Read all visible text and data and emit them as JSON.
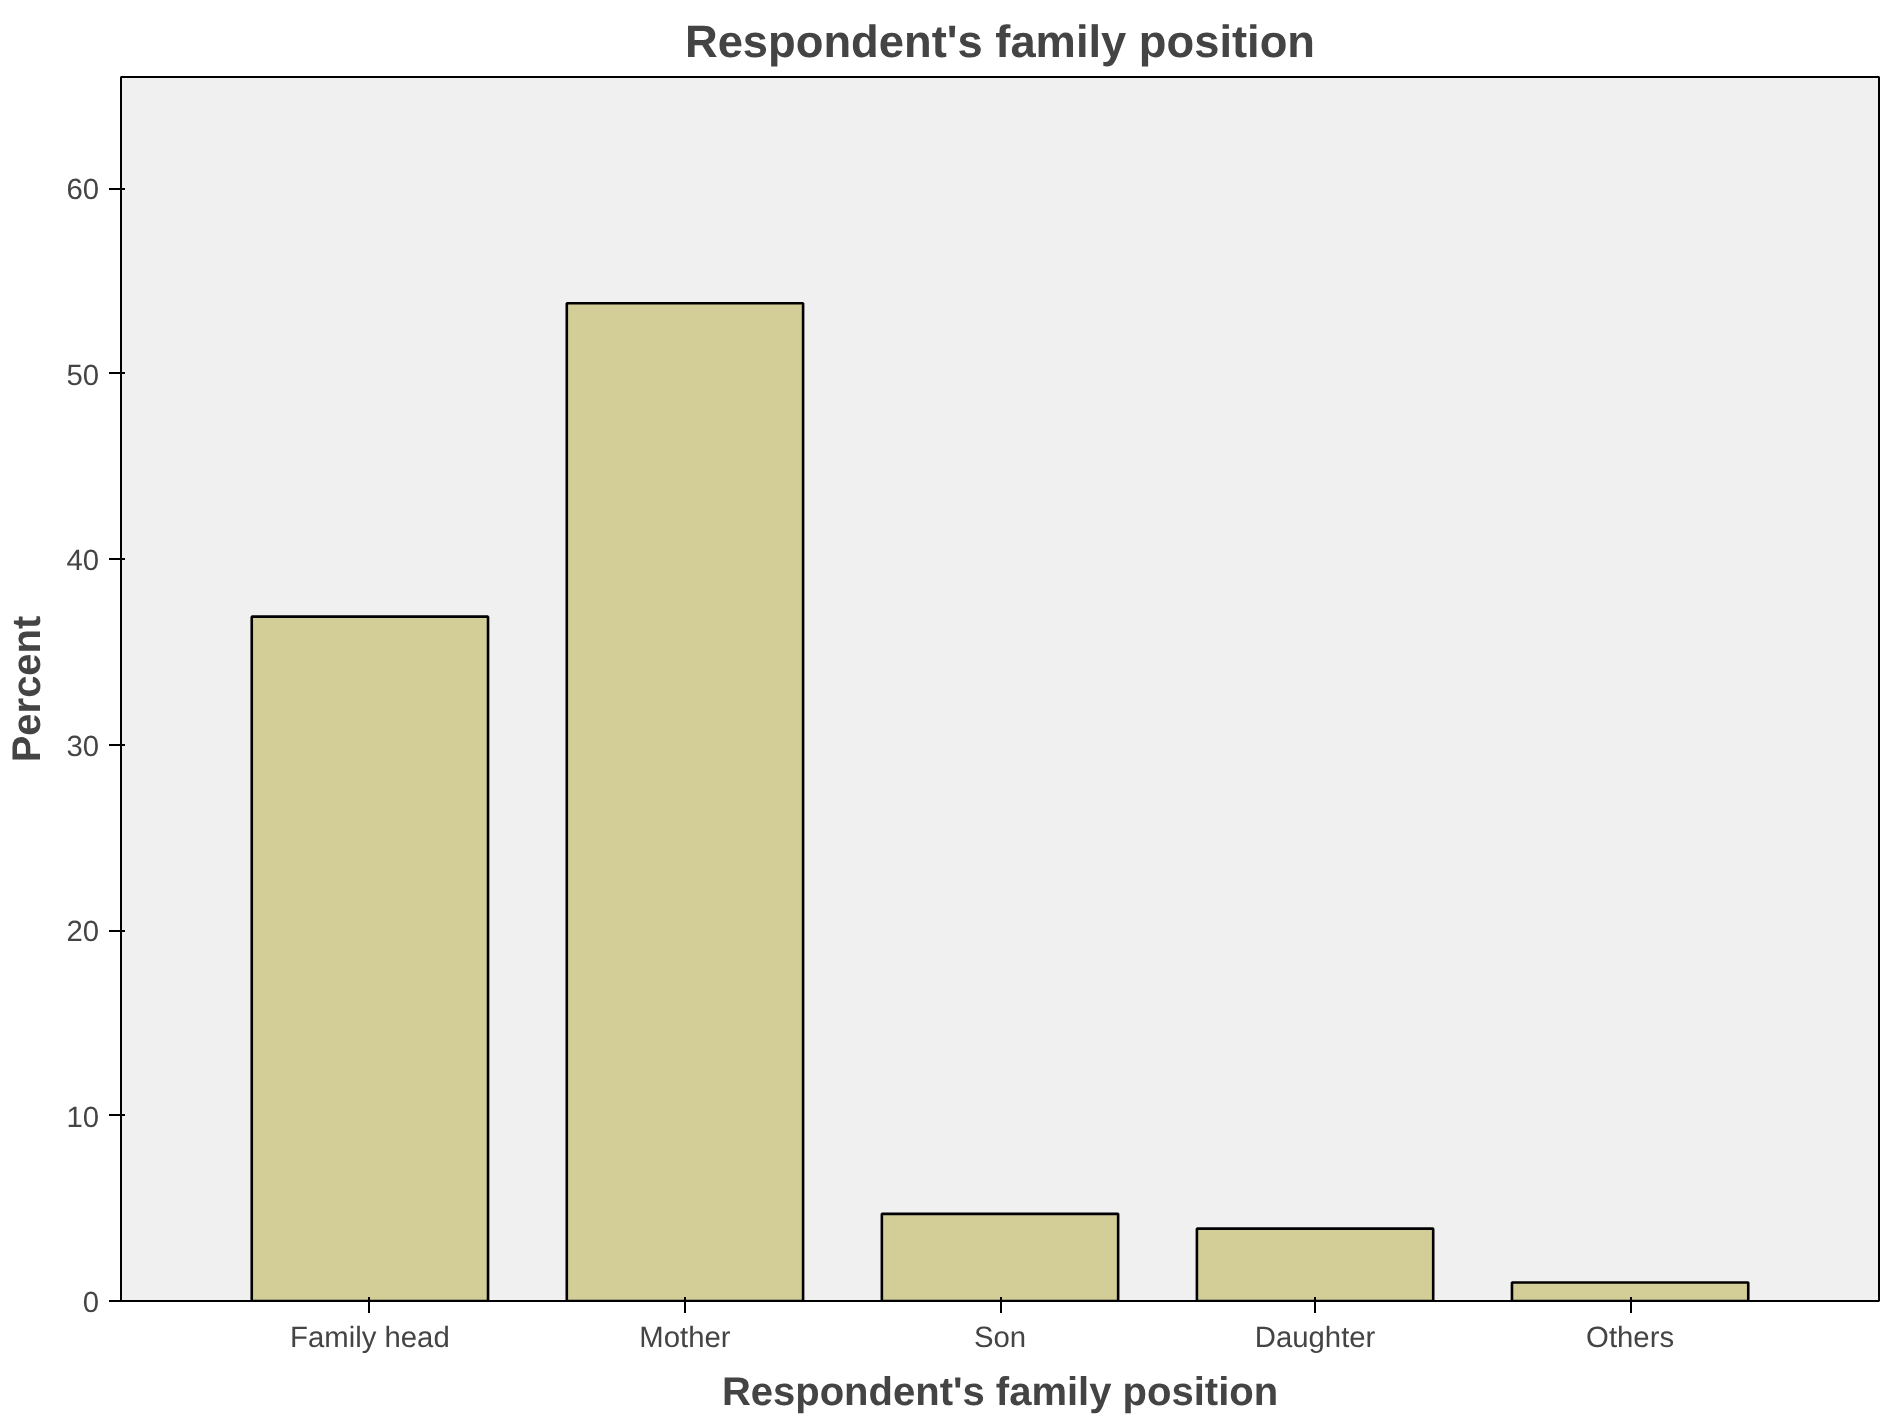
{
  "chart_data": {
    "type": "bar",
    "title": "Respondent's family position",
    "xlabel": "Respondent's family position",
    "ylabel": "Percent",
    "categories": [
      "Family head",
      "Mother",
      "Son",
      "Daughter",
      "Others"
    ],
    "values": [
      36.9,
      53.8,
      4.7,
      3.9,
      1.0
    ],
    "color": "#d3ce97",
    "ylim": [
      0,
      66
    ],
    "yticks": [
      0,
      10,
      20,
      30,
      40,
      50,
      60
    ],
    "grid": false
  }
}
